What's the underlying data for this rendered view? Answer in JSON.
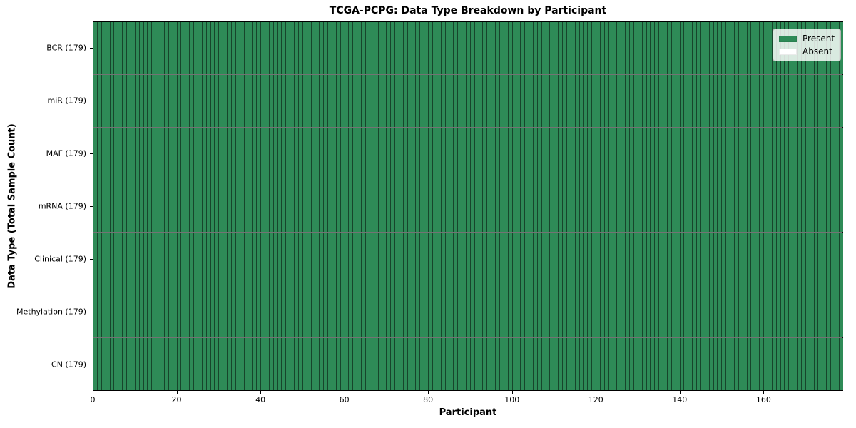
{
  "chart_data": {
    "type": "heatmap",
    "title": "TCGA-PCPG: Data Type Breakdown by Participant",
    "xlabel": "Participant",
    "ylabel": "Data Type (Total Sample Count)",
    "x_range": [
      0,
      179
    ],
    "x_ticks": [
      0,
      20,
      40,
      60,
      80,
      100,
      120,
      140,
      160
    ],
    "n_participants": 179,
    "rows": [
      {
        "label": "BCR (179)",
        "data_type": "BCR",
        "total_samples": 179,
        "present": 179,
        "absent": 0
      },
      {
        "label": "miR (179)",
        "data_type": "miR",
        "total_samples": 179,
        "present": 179,
        "absent": 0
      },
      {
        "label": "MAF (179)",
        "data_type": "MAF",
        "total_samples": 179,
        "present": 179,
        "absent": 0
      },
      {
        "label": "mRNA (179)",
        "data_type": "mRNA",
        "total_samples": 179,
        "present": 179,
        "absent": 0
      },
      {
        "label": "Clinical (179)",
        "data_type": "Clinical",
        "total_samples": 179,
        "present": 179,
        "absent": 0
      },
      {
        "label": "Methylation (179)",
        "data_type": "Methylation",
        "total_samples": 179,
        "present": 179,
        "absent": 0
      },
      {
        "label": "CN (179)",
        "data_type": "CN",
        "total_samples": 179,
        "present": 179,
        "absent": 0
      }
    ],
    "legend": [
      {
        "label": "Present",
        "color": "#2e8b57"
      },
      {
        "label": "Absent",
        "color": "#ffffff"
      }
    ],
    "colors": {
      "present": "#2e8b57",
      "absent": "#ffffff",
      "cell_edge": "rgba(0,0,0,0.5)",
      "row_separator": "rgba(0,0,0,0.55)",
      "axis": "#000000"
    },
    "legend_position": "upper right"
  }
}
